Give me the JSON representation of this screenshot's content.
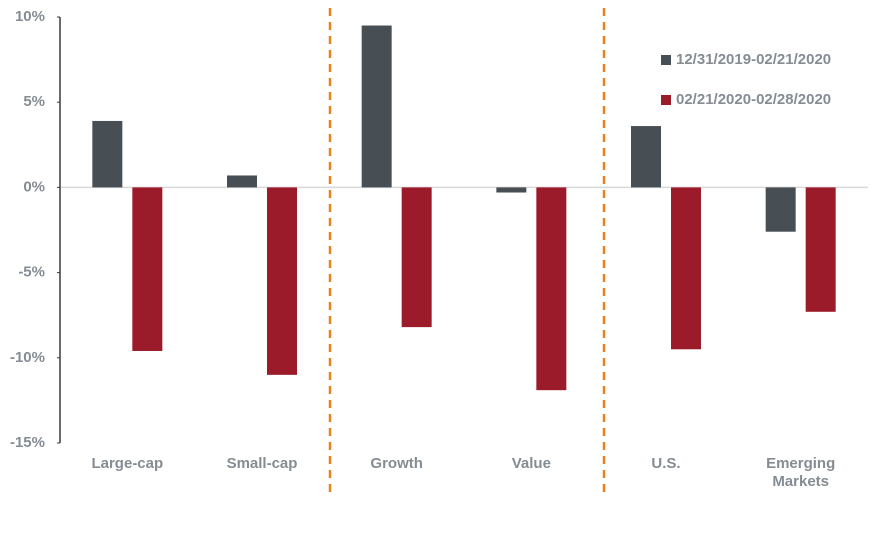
{
  "chart_data": {
    "type": "bar",
    "categories": [
      "Large-cap",
      "Small-cap",
      "Growth",
      "Value",
      "U.S.",
      "Emerging Markets"
    ],
    "series": [
      {
        "name": "12/31/2019-02/21/2020",
        "color": "#474f55",
        "values": [
          3.9,
          0.7,
          9.5,
          -0.3,
          3.6,
          -2.6
        ]
      },
      {
        "name": "02/21/2020-02/28/2020",
        "color": "#9b1b2a",
        "values": [
          -9.6,
          -11.0,
          -8.2,
          -11.9,
          -9.5,
          -7.3
        ]
      }
    ],
    "ylim": [
      -15,
      10
    ],
    "yticks": [
      {
        "value": -15,
        "label": "-15%"
      },
      {
        "value": -10,
        "label": "-10%"
      },
      {
        "value": -5,
        "label": "-5%"
      },
      {
        "value": 0,
        "label": "0%"
      },
      {
        "value": 5,
        "label": "5%"
      },
      {
        "value": 10,
        "label": "10%"
      }
    ],
    "grid": false,
    "legend": "top-right"
  }
}
